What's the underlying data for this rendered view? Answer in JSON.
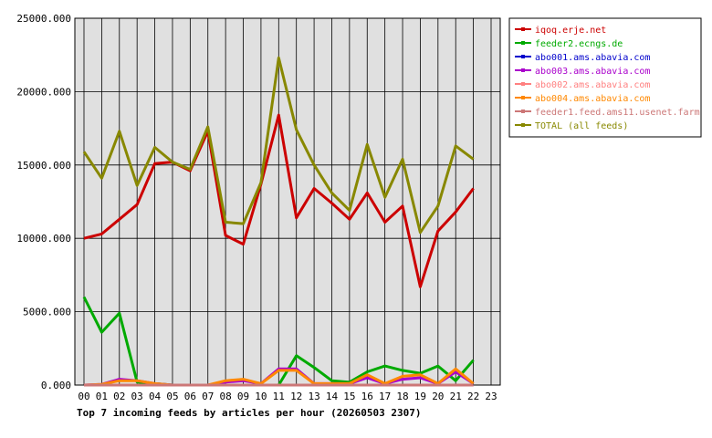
{
  "chart_data": {
    "type": "line",
    "title": "Top 7 incoming feeds by articles per hour (20260503 2307)",
    "categories": [
      "00",
      "01",
      "02",
      "03",
      "04",
      "05",
      "06",
      "07",
      "08",
      "09",
      "10",
      "11",
      "12",
      "13",
      "14",
      "15",
      "16",
      "17",
      "18",
      "19",
      "20",
      "21",
      "22",
      "23"
    ],
    "y_tick_labels": [
      "25000.000",
      "20000.000",
      "15000.000",
      "10000.000",
      "5000.000",
      "0.000"
    ],
    "ylim": [
      0,
      25000
    ],
    "grid": true,
    "legend_position": "right",
    "series": [
      {
        "name": "iqoq.erje.net",
        "color": "#cc0000",
        "values": [
          10000,
          10300,
          11300,
          12300,
          15100,
          15200,
          14600,
          17300,
          10200,
          9600,
          13700,
          18400,
          11400,
          13400,
          12400,
          11300,
          13100,
          11100,
          12200,
          6700,
          10500,
          11800,
          13400,
          null
        ]
      },
      {
        "name": "feeder2.ecngs.de",
        "color": "#00aa00",
        "values": [
          6000,
          3600,
          4900,
          200,
          100,
          0,
          0,
          0,
          0,
          0,
          0,
          0,
          2000,
          1200,
          300,
          200,
          900,
          1300,
          1000,
          800,
          1300,
          300,
          1700,
          null
        ]
      },
      {
        "name": "abo001.ams.abavia.com",
        "color": "#0000cc",
        "values": [
          0,
          0,
          0,
          0,
          0,
          0,
          0,
          0,
          0,
          0,
          0,
          0,
          0,
          0,
          0,
          0,
          0,
          0,
          0,
          0,
          0,
          0,
          0,
          null
        ]
      },
      {
        "name": "abo003.ams.abavia.com",
        "color": "#aa00cc",
        "values": [
          0,
          50,
          400,
          300,
          100,
          0,
          0,
          0,
          200,
          300,
          100,
          1100,
          1100,
          100,
          100,
          100,
          500,
          100,
          400,
          500,
          100,
          900,
          100,
          null
        ]
      },
      {
        "name": "abo002.ams.abavia.com",
        "color": "#ff8080",
        "values": [
          0,
          0,
          0,
          0,
          0,
          0,
          0,
          0,
          0,
          0,
          0,
          0,
          0,
          0,
          0,
          0,
          0,
          0,
          0,
          0,
          0,
          0,
          0,
          null
        ]
      },
      {
        "name": "abo004.ams.abavia.com",
        "color": "#ff8800",
        "values": [
          0,
          50,
          300,
          300,
          100,
          0,
          0,
          0,
          300,
          400,
          100,
          1000,
          1000,
          100,
          100,
          100,
          700,
          100,
          600,
          700,
          100,
          1100,
          100,
          null
        ]
      },
      {
        "name": "feeder1.feed.ams11.usenet.farm",
        "color": "#cc7777",
        "values": [
          0,
          0,
          0,
          0,
          0,
          0,
          0,
          0,
          0,
          0,
          0,
          0,
          0,
          0,
          0,
          0,
          0,
          0,
          0,
          0,
          0,
          0,
          0,
          null
        ]
      },
      {
        "name": "TOTAL (all feeds)",
        "color": "#888800",
        "values": [
          15900,
          14100,
          17300,
          13600,
          16200,
          15200,
          14700,
          17600,
          11100,
          11000,
          13800,
          22300,
          17400,
          15000,
          13100,
          11900,
          16400,
          12800,
          15400,
          10400,
          12200,
          16300,
          15400,
          null
        ]
      }
    ]
  }
}
